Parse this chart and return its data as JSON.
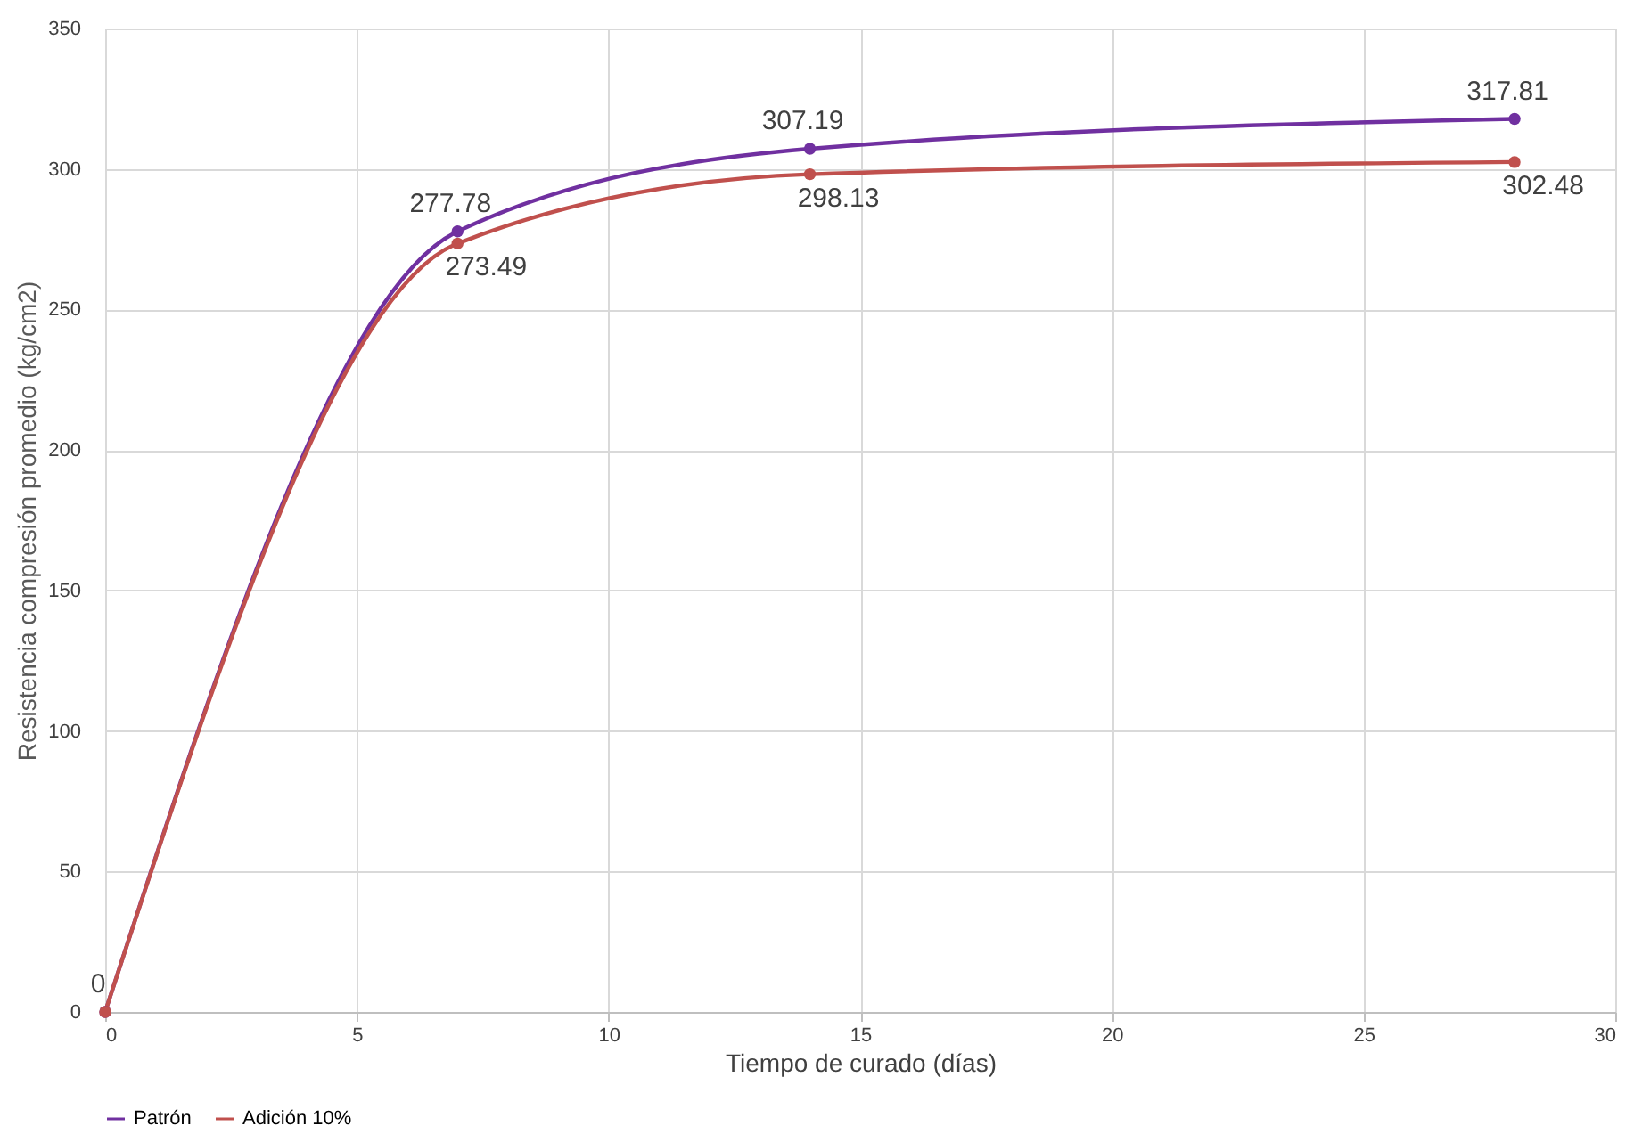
{
  "chart_data": {
    "type": "line",
    "xlabel": "Tiempo de curado (días)",
    "ylabel": "Resistencia compresión promedio  (kg/cm2)",
    "x": [
      0,
      7,
      14,
      28
    ],
    "series": [
      {
        "name": "Patrón",
        "color": "#7030a0",
        "values": [
          0,
          277.78,
          307.19,
          317.81
        ],
        "value_labels": [
          "0",
          "277.78",
          "307.19",
          "317.81"
        ]
      },
      {
        "name": "Adición 10%",
        "color": "#c0504d",
        "values": [
          0,
          273.49,
          298.13,
          302.48
        ],
        "value_labels": [
          null,
          "273.49",
          "298.13",
          "302.48"
        ]
      }
    ],
    "xlim": [
      0,
      30
    ],
    "xticks": [
      0,
      5,
      10,
      15,
      20,
      25,
      30
    ],
    "ylim": [
      0,
      350
    ],
    "yticks": [
      0,
      50,
      100,
      150,
      200,
      250,
      300,
      350
    ],
    "grid": true,
    "legend": "bottom",
    "marker": "circle",
    "line_style": "solid"
  }
}
